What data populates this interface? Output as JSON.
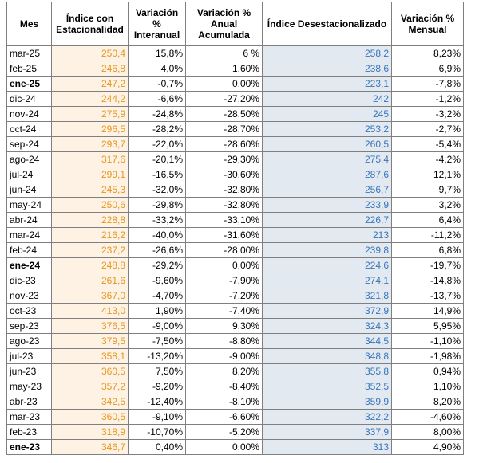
{
  "headers": {
    "mes": "Mes",
    "iec": "Índice con Estacionalidad",
    "vi": "Variación % Interanual",
    "vaa": "Variación % Anual Acumulada",
    "ides": "Índice Desestacionalizado",
    "vm": "Variación % Mensual"
  },
  "rows": [
    {
      "mes": "mar-25",
      "bold": false,
      "iec": "250,4",
      "vi": "15,8%",
      "vaa": "6 %",
      "ides": "258,2",
      "vm": "8,23%"
    },
    {
      "mes": "feb-25",
      "bold": false,
      "iec": "246,8",
      "vi": "4,0%",
      "vaa": "1,60%",
      "ides": "238,6",
      "vm": "6,9%"
    },
    {
      "mes": "ene-25",
      "bold": true,
      "iec": "247,2",
      "vi": "-0,7%",
      "vaa": "0,00%",
      "ides": "223,1",
      "vm": "-7,8%"
    },
    {
      "mes": "dic-24",
      "bold": false,
      "iec": "244,2",
      "vi": "-6,6%",
      "vaa": "-27,20%",
      "ides": "242",
      "vm": "-1,2%"
    },
    {
      "mes": "nov-24",
      "bold": false,
      "iec": "275,9",
      "vi": "-24,8%",
      "vaa": "-28,50%",
      "ides": "245",
      "vm": "-3,2%"
    },
    {
      "mes": "oct-24",
      "bold": false,
      "iec": "296,5",
      "vi": "-28,2%",
      "vaa": "-28,70%",
      "ides": "253,2",
      "vm": "-2,7%"
    },
    {
      "mes": "sep-24",
      "bold": false,
      "iec": "293,7",
      "vi": "-22,0%",
      "vaa": "-28,60%",
      "ides": "260,5",
      "vm": "-5,4%"
    },
    {
      "mes": "ago-24",
      "bold": false,
      "iec": "317,6",
      "vi": "-20,1%",
      "vaa": "-29,30%",
      "ides": "275,4",
      "vm": "-4,2%"
    },
    {
      "mes": "jul-24",
      "bold": false,
      "iec": "299,1",
      "vi": "-16,5%",
      "vaa": "-30,60%",
      "ides": "287,6",
      "vm": "12,1%"
    },
    {
      "mes": "jun-24",
      "bold": false,
      "iec": "245,3",
      "vi": "-32,0%",
      "vaa": "-32,80%",
      "ides": "256,7",
      "vm": "9,7%"
    },
    {
      "mes": "may-24",
      "bold": false,
      "iec": "250,6",
      "vi": "-29,8%",
      "vaa": "-32,80%",
      "ides": "233,9",
      "vm": "3,2%"
    },
    {
      "mes": "abr-24",
      "bold": false,
      "iec": "228,8",
      "vi": "-33,2%",
      "vaa": "-33,10%",
      "ides": "226,7",
      "vm": "6,4%"
    },
    {
      "mes": "mar-24",
      "bold": false,
      "iec": "216,2",
      "vi": "-40,0%",
      "vaa": "-31,60%",
      "ides": "213",
      "vm": "-11,2%"
    },
    {
      "mes": "feb-24",
      "bold": false,
      "iec": "237,2",
      "vi": "-26,6%",
      "vaa": "-28,00%",
      "ides": "239,8",
      "vm": "6,8%"
    },
    {
      "mes": "ene-24",
      "bold": true,
      "iec": "248,8",
      "vi": "-29,2%",
      "vaa": "0,00%",
      "ides": "224,6",
      "vm": "-19,7%"
    },
    {
      "mes": "dic-23",
      "bold": false,
      "iec": "261,6",
      "vi": "-9,60%",
      "vaa": "-7,90%",
      "ides": "274,1",
      "vm": "-14,8%"
    },
    {
      "mes": "nov-23",
      "bold": false,
      "iec": "367,0",
      "vi": "-4,70%",
      "vaa": "-7,20%",
      "ides": "321,8",
      "vm": "-13,7%"
    },
    {
      "mes": "oct-23",
      "bold": false,
      "iec": "413,0",
      "vi": "1,90%",
      "vaa": "-7,40%",
      "ides": "372,9",
      "vm": "14,9%"
    },
    {
      "mes": "sep-23",
      "bold": false,
      "iec": "376,5",
      "vi": "-9,00%",
      "vaa": "9,30%",
      "ides": "324,3",
      "vm": "5,95%"
    },
    {
      "mes": "ago-23",
      "bold": false,
      "iec": "379,5",
      "vi": "-7,50%",
      "vaa": "-8,80%",
      "ides": "344,5",
      "vm": "-1,10%"
    },
    {
      "mes": "jul-23",
      "bold": false,
      "iec": "358,1",
      "vi": "-13,20%",
      "vaa": "-9,00%",
      "ides": "348,8",
      "vm": "-1,98%"
    },
    {
      "mes": "jun-23",
      "bold": false,
      "iec": "360,5",
      "vi": "7,50%",
      "vaa": "8,20%",
      "ides": "355,8",
      "vm": "0,94%"
    },
    {
      "mes": "may-23",
      "bold": false,
      "iec": "357,2",
      "vi": "-9,20%",
      "vaa": "-8,40%",
      "ides": "352,5",
      "vm": "1,10%"
    },
    {
      "mes": "abr-23",
      "bold": false,
      "iec": "342,5",
      "vi": "-12,40%",
      "vaa": "-8,10%",
      "ides": "359,9",
      "vm": "8,20%"
    },
    {
      "mes": "mar-23",
      "bold": false,
      "iec": "360,5",
      "vi": "-9,10%",
      "vaa": "-6,60%",
      "ides": "322,2",
      "vm": "-4,60%"
    },
    {
      "mes": "feb-23",
      "bold": false,
      "iec": "318,9",
      "vi": "-10,70%",
      "vaa": "-5,20%",
      "ides": "337,9",
      "vm": "8,00%"
    },
    {
      "mes": "ene-23",
      "bold": true,
      "iec": "346,7",
      "vi": "0,40%",
      "vaa": "0,00%",
      "ides": "313",
      "vm": "4,90%"
    }
  ],
  "colors": {
    "estacionalidad_text": "#e8951e",
    "estacionalidad_bg": "#fdf2e3",
    "desestacionalizado_text": "#3a76b9",
    "desestacionalizado_bg": "#e3e9f1",
    "grid": "#7f7f7f"
  }
}
